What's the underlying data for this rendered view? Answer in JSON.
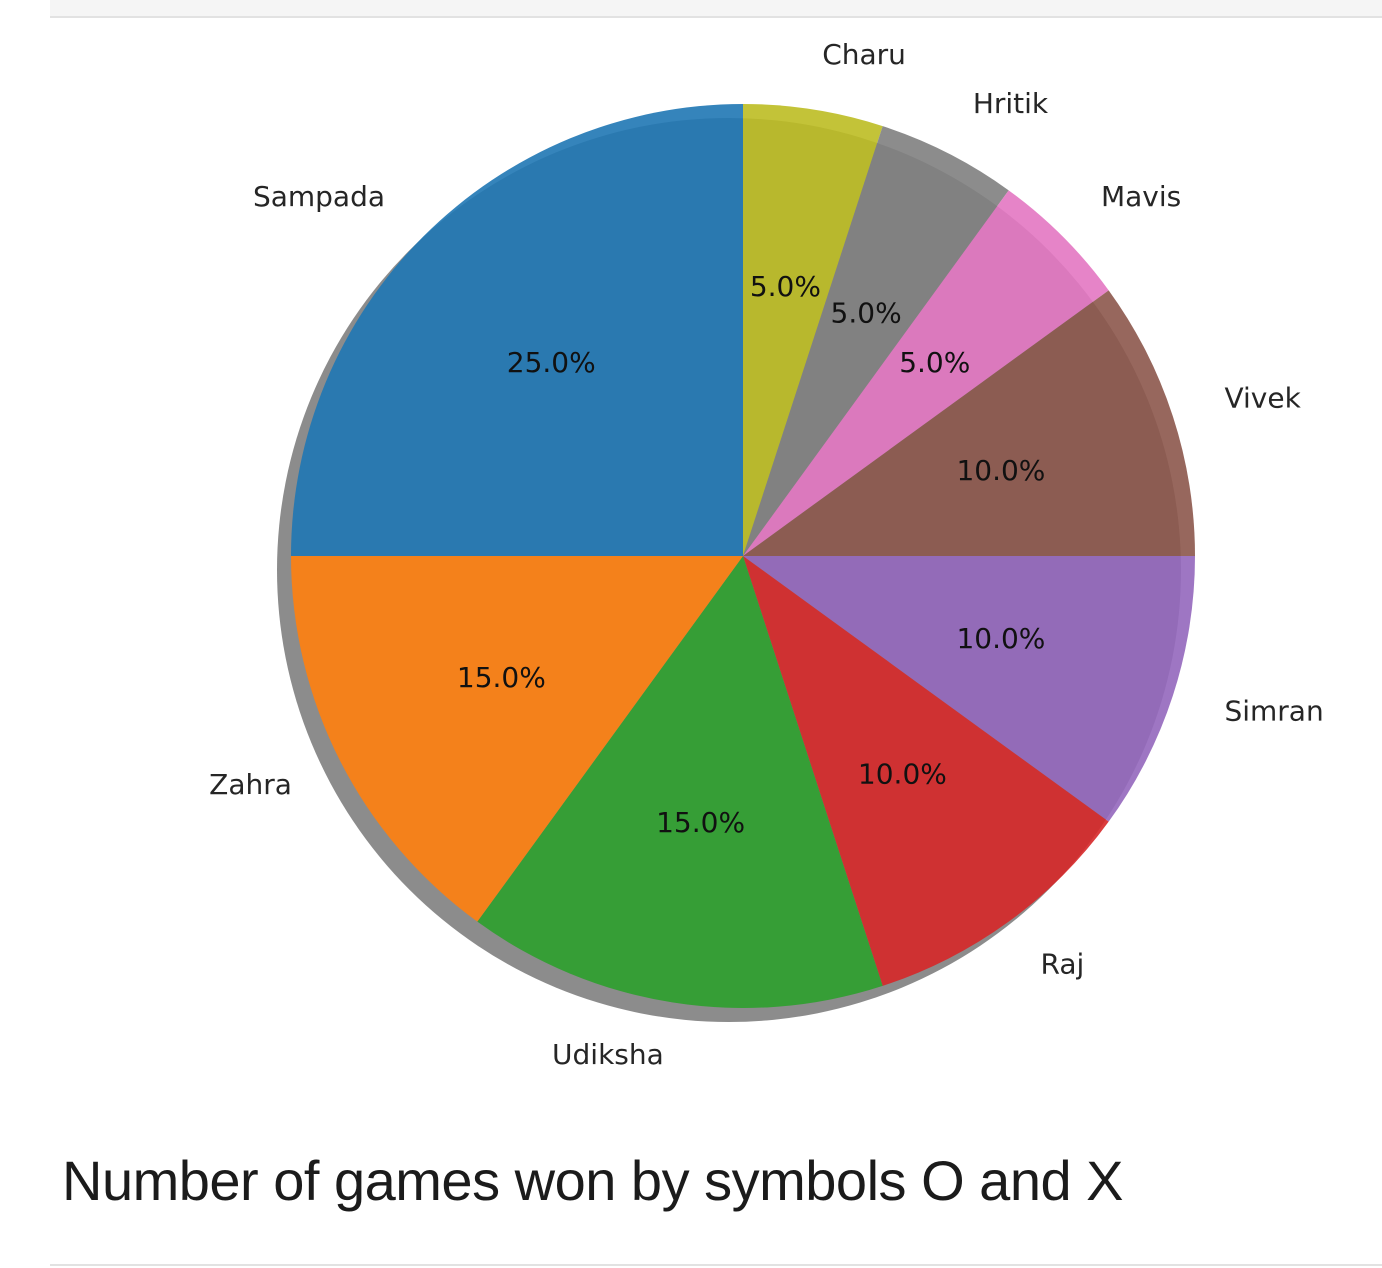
{
  "chart_data": {
    "type": "pie",
    "title": "",
    "categories": [
      "Charu",
      "Hritik",
      "Mavis",
      "Vivek",
      "Simran",
      "Raj",
      "Udiksha",
      "Zahra",
      "Sampada"
    ],
    "values": [
      5.0,
      5.0,
      5.0,
      10.0,
      10.0,
      10.0,
      15.0,
      15.0,
      25.0
    ],
    "percent_labels": [
      "5.0%",
      "5.0%",
      "5.0%",
      "10.0%",
      "10.0%",
      "10.0%",
      "15.0%",
      "15.0%",
      "25.0%"
    ],
    "colors": [
      "#bcbd22",
      "#7f7f7f",
      "#e377c2",
      "#8c564b",
      "#9467bd",
      "#d62728",
      "#2ca02c",
      "#ff7f0e",
      "#1f77b4"
    ],
    "direction": "clockwise",
    "start_angle": "top",
    "shadow": true
  },
  "heading": "Number of games won by symbols O and X"
}
